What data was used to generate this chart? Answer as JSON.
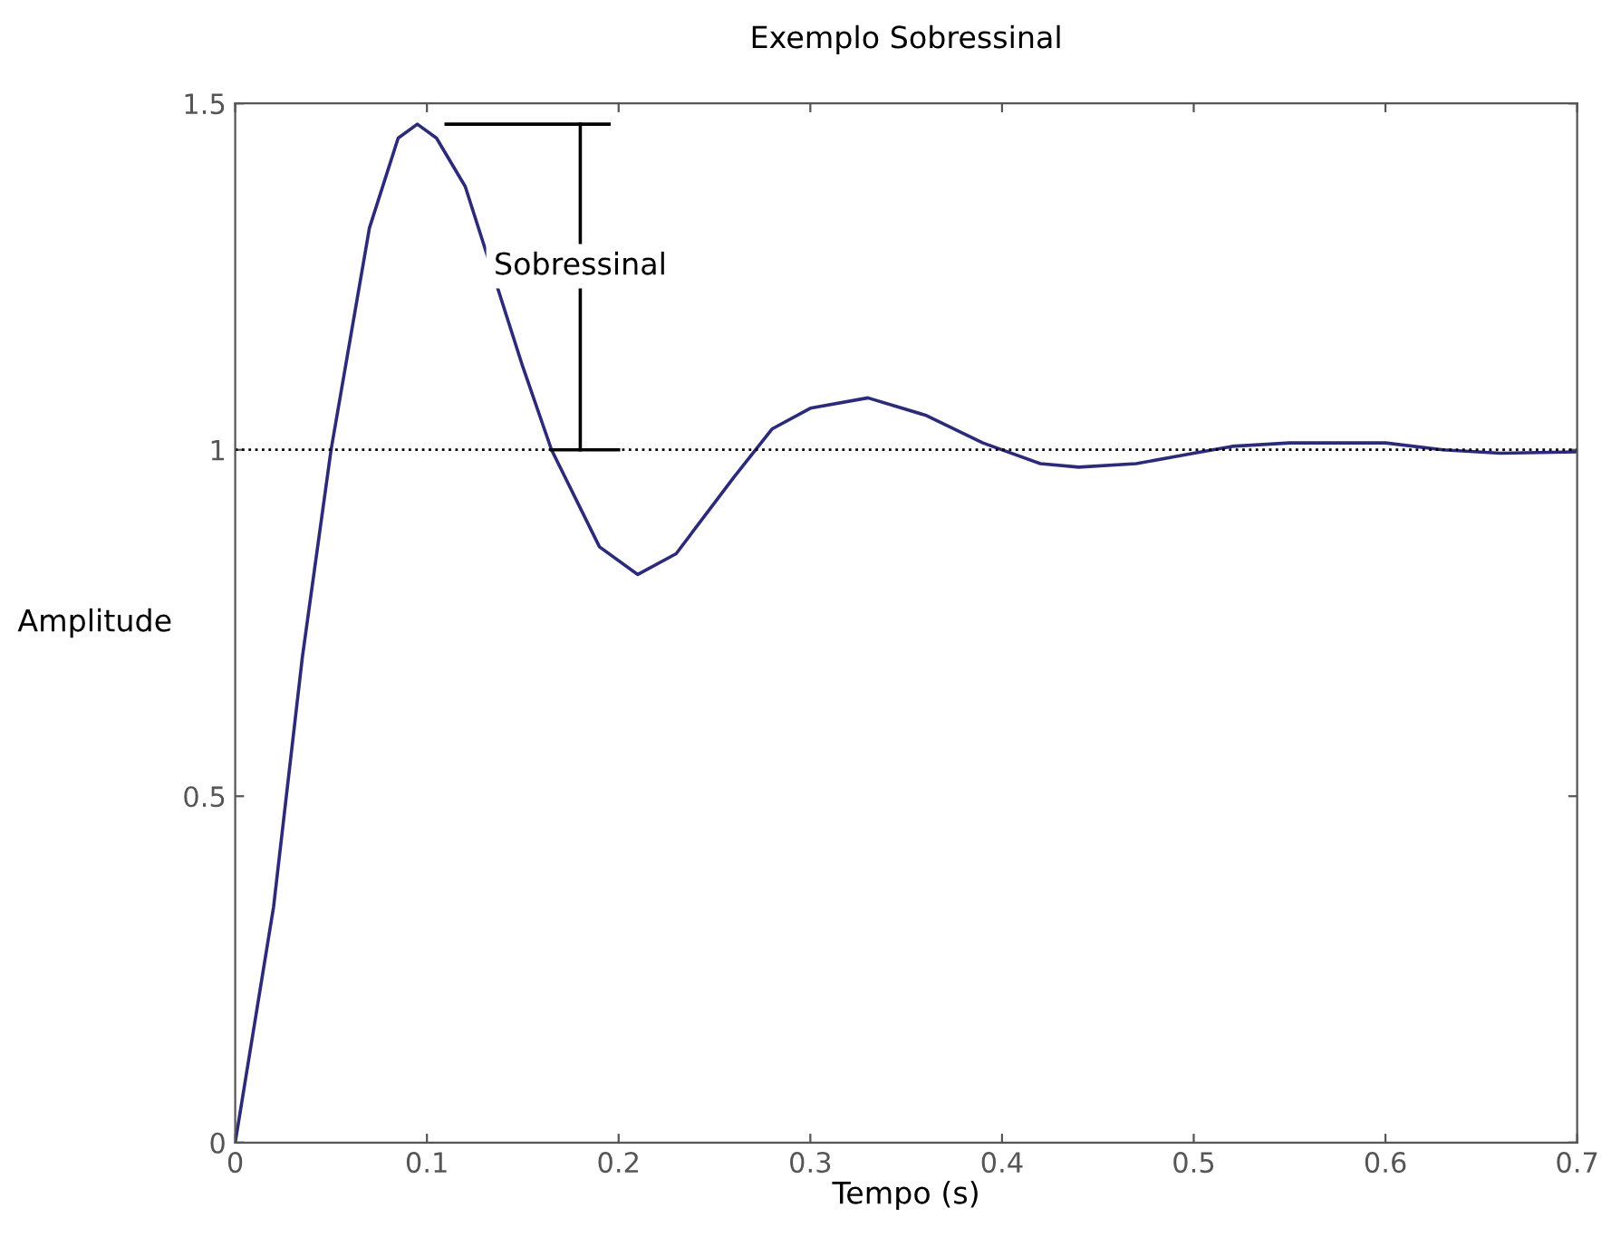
{
  "chart_data": {
    "type": "line",
    "title": "Exemplo Sobressinal",
    "xlabel": "Tempo (s)",
    "ylabel": "Amplitude",
    "x": [
      0,
      0.02,
      0.035,
      0.05,
      0.07,
      0.085,
      0.095,
      0.105,
      0.12,
      0.15,
      0.165,
      0.19,
      0.21,
      0.23,
      0.26,
      0.28,
      0.3,
      0.33,
      0.36,
      0.39,
      0.42,
      0.44,
      0.47,
      0.5,
      0.52,
      0.55,
      0.6,
      0.63,
      0.66,
      0.7
    ],
    "series": [
      {
        "color": "#2b2b7a",
        "values": [
          0,
          0.34,
          0.7,
          1.0,
          1.32,
          1.45,
          1.47,
          1.45,
          1.38,
          1.12,
          1.0,
          0.86,
          0.82,
          0.85,
          0.96,
          1.03,
          1.06,
          1.075,
          1.05,
          1.01,
          0.98,
          0.975,
          0.98,
          0.995,
          1.005,
          1.01,
          1.01,
          1.0,
          0.995,
          0.997
        ]
      }
    ],
    "xlim": [
      0,
      0.7
    ],
    "xticks": [
      0,
      0.1,
      0.2,
      0.3,
      0.4,
      0.5,
      0.6,
      0.7
    ],
    "ylim": [
      0,
      1.5
    ],
    "yticks": [
      0,
      0.5,
      1,
      1.5
    ],
    "ref_lines": [
      {
        "axis": "y",
        "value": 1,
        "color": "#000000",
        "line_style": "dotted"
      }
    ],
    "annotations": [
      "Sobressinal"
    ],
    "grid": false,
    "legend": false,
    "marker": "none",
    "line_style": "solid"
  }
}
